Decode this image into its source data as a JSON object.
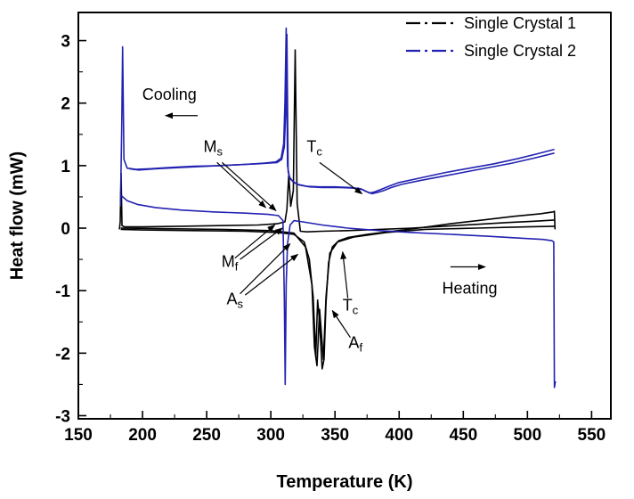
{
  "chart_data": {
    "type": "line",
    "title": "",
    "xlabel": "Temperature (K)",
    "ylabel": "Heat flow (mW)",
    "xlim": [
      150,
      565
    ],
    "ylim": [
      -3.05,
      3.45
    ],
    "x_ticks": [
      150,
      200,
      250,
      300,
      350,
      400,
      450,
      500,
      550
    ],
    "y_ticks": [
      -3,
      -2,
      -1,
      0,
      1,
      2,
      3
    ],
    "x_minor_step": 25,
    "y_minor_step": 0.5,
    "grid": false,
    "legend_position": "top-right",
    "colors": {
      "crystal1": "#000000",
      "crystal2": "#2222b2"
    },
    "legend": [
      {
        "label": "Single Crystal 1",
        "color": "#000000",
        "dash": "dash-dot"
      },
      {
        "label": "Single Crystal 2",
        "color": "#2222b2",
        "dash": "dash-dot"
      }
    ],
    "series": [
      {
        "name": "Single Crystal 1 heating",
        "color": "#000000",
        "points": [
          [
            183,
            -0.02
          ],
          [
            200,
            -0.03
          ],
          [
            240,
            -0.04
          ],
          [
            280,
            -0.05
          ],
          [
            305,
            -0.07
          ],
          [
            318,
            -0.1
          ],
          [
            326,
            -0.22
          ],
          [
            330,
            -0.5
          ],
          [
            333,
            -1.1
          ],
          [
            335,
            -2.05
          ],
          [
            336.5,
            -1.15
          ],
          [
            338,
            -1.5
          ],
          [
            340,
            -2.25
          ],
          [
            341.5,
            -2.1
          ],
          [
            343,
            -1.2
          ],
          [
            345,
            -0.55
          ],
          [
            348,
            -0.3
          ],
          [
            353,
            -0.2
          ],
          [
            360,
            -0.15
          ],
          [
            375,
            -0.1
          ],
          [
            395,
            -0.05
          ],
          [
            415,
            0.0
          ],
          [
            440,
            0.07
          ],
          [
            465,
            0.13
          ],
          [
            490,
            0.19
          ],
          [
            510,
            0.23
          ],
          [
            520,
            0.26
          ],
          [
            521,
            0.27
          ],
          [
            521.5,
            -0.02
          ]
        ]
      },
      {
        "name": "Single Crystal 1 heating cycle 2",
        "color": "#000000",
        "points": [
          [
            183,
            0.0
          ],
          [
            220,
            -0.01
          ],
          [
            260,
            -0.02
          ],
          [
            300,
            -0.04
          ],
          [
            318,
            -0.08
          ],
          [
            327,
            -0.3
          ],
          [
            332,
            -0.9
          ],
          [
            334,
            -1.9
          ],
          [
            336,
            -2.2
          ],
          [
            338,
            -1.3
          ],
          [
            341,
            -2.1
          ],
          [
            343,
            -1.1
          ],
          [
            346,
            -0.4
          ],
          [
            352,
            -0.22
          ],
          [
            365,
            -0.14
          ],
          [
            390,
            -0.07
          ],
          [
            420,
            -0.02
          ],
          [
            460,
            0.0
          ],
          [
            500,
            0.02
          ],
          [
            521,
            0.03
          ]
        ]
      },
      {
        "name": "Single Crystal 1 cooling",
        "color": "#000000",
        "points": [
          [
            521,
            0.13
          ],
          [
            505,
            0.11
          ],
          [
            485,
            0.09
          ],
          [
            460,
            0.06
          ],
          [
            435,
            0.03
          ],
          [
            410,
            0.0
          ],
          [
            385,
            -0.02
          ],
          [
            360,
            -0.04
          ],
          [
            340,
            -0.05
          ],
          [
            328,
            -0.06
          ],
          [
            323,
            -0.05
          ],
          [
            320.5,
            0.4
          ],
          [
            319,
            2.85
          ],
          [
            317.5,
            0.6
          ],
          [
            315.5,
            0.35
          ],
          [
            314,
            0.85
          ],
          [
            312.5,
            0.3
          ],
          [
            311,
            0.1
          ],
          [
            305,
            0.07
          ],
          [
            290,
            0.05
          ],
          [
            260,
            0.04
          ],
          [
            230,
            0.03
          ],
          [
            200,
            0.02
          ],
          [
            186,
            0.02
          ],
          [
            184,
            0.04
          ],
          [
            183.3,
            0.88
          ],
          [
            182.6,
            0.1
          ],
          [
            182,
            -0.02
          ]
        ]
      },
      {
        "name": "Single Crystal 2 heating",
        "color": "#2222b2",
        "points": [
          [
            183.5,
            0.52
          ],
          [
            188,
            0.44
          ],
          [
            196,
            0.38
          ],
          [
            210,
            0.33
          ],
          [
            230,
            0.29
          ],
          [
            255,
            0.26
          ],
          [
            280,
            0.24
          ],
          [
            298,
            0.22
          ],
          [
            306,
            0.2
          ],
          [
            309.5,
            0.12
          ],
          [
            310.5,
            -1.1
          ],
          [
            311.2,
            -2.5
          ],
          [
            312,
            -0.9
          ],
          [
            313,
            -0.25
          ],
          [
            315,
            0.05
          ],
          [
            318,
            0.12
          ],
          [
            325,
            0.1
          ],
          [
            340,
            0.05
          ],
          [
            360,
            0.0
          ],
          [
            385,
            -0.04
          ],
          [
            410,
            -0.07
          ],
          [
            440,
            -0.1
          ],
          [
            470,
            -0.13
          ],
          [
            495,
            -0.16
          ],
          [
            512,
            -0.18
          ],
          [
            519,
            -0.2
          ],
          [
            520.5,
            -0.22
          ],
          [
            521,
            -2.55
          ],
          [
            521.8,
            -2.45
          ]
        ]
      },
      {
        "name": "Single Crystal 2 cooling",
        "color": "#2222b2",
        "points": [
          [
            521,
            1.26
          ],
          [
            508,
            1.19
          ],
          [
            492,
            1.11
          ],
          [
            474,
            1.03
          ],
          [
            455,
            0.96
          ],
          [
            436,
            0.89
          ],
          [
            416,
            0.8
          ],
          [
            400,
            0.73
          ],
          [
            392,
            0.67
          ],
          [
            386,
            0.62
          ],
          [
            381,
            0.58
          ],
          [
            377,
            0.56
          ],
          [
            374,
            0.59
          ],
          [
            370,
            0.63
          ],
          [
            362,
            0.65
          ],
          [
            350,
            0.66
          ],
          [
            338,
            0.66
          ],
          [
            328,
            0.67
          ],
          [
            321,
            0.7
          ],
          [
            317,
            0.75
          ],
          [
            314.5,
            0.82
          ],
          [
            313,
            1.0
          ],
          [
            312,
            3.2
          ],
          [
            311,
            2.0
          ],
          [
            310,
            1.35
          ],
          [
            308,
            1.12
          ],
          [
            304,
            1.06
          ],
          [
            295,
            1.04
          ],
          [
            280,
            1.02
          ],
          [
            260,
            1.0
          ],
          [
            240,
            0.99
          ],
          [
            220,
            0.97
          ],
          [
            205,
            0.95
          ],
          [
            195,
            0.94
          ],
          [
            188,
            0.96
          ],
          [
            185.5,
            1.1
          ],
          [
            184.5,
            2.9
          ],
          [
            183.8,
            1.6
          ],
          [
            183.2,
            0.8
          ],
          [
            182.8,
            0.35
          ]
        ]
      },
      {
        "name": "Single Crystal 2 cooling cycle 2",
        "color": "#2222b2",
        "points": [
          [
            521,
            1.2
          ],
          [
            505,
            1.12
          ],
          [
            488,
            1.04
          ],
          [
            470,
            0.97
          ],
          [
            452,
            0.9
          ],
          [
            434,
            0.83
          ],
          [
            416,
            0.76
          ],
          [
            402,
            0.7
          ],
          [
            394,
            0.65
          ],
          [
            388,
            0.6
          ],
          [
            383,
            0.57
          ],
          [
            379,
            0.55
          ],
          [
            375,
            0.58
          ],
          [
            371,
            0.62
          ],
          [
            364,
            0.64
          ],
          [
            352,
            0.65
          ],
          [
            340,
            0.65
          ],
          [
            330,
            0.66
          ],
          [
            322,
            0.69
          ],
          [
            318,
            0.73
          ],
          [
            315,
            0.79
          ],
          [
            313.5,
            0.9
          ],
          [
            312.5,
            3.1
          ],
          [
            311.5,
            1.8
          ],
          [
            310.5,
            1.3
          ],
          [
            308.5,
            1.1
          ],
          [
            305,
            1.05
          ],
          [
            290,
            1.03
          ],
          [
            270,
            1.01
          ],
          [
            250,
            0.99
          ],
          [
            230,
            0.97
          ],
          [
            210,
            0.95
          ],
          [
            197,
            0.93
          ],
          [
            190,
            0.95
          ]
        ]
      }
    ],
    "annotations": [
      {
        "name": "cooling",
        "text": "Cooling",
        "sub": "",
        "x": 221,
        "y": 2.05,
        "arrows": [
          [
            243,
            1.8,
            218,
            1.8
          ]
        ]
      },
      {
        "name": "heating",
        "text": "Heating",
        "sub": "",
        "x": 455,
        "y": -1.05,
        "arrows": [
          [
            440,
            -0.62,
            467,
            -0.62
          ]
        ]
      },
      {
        "name": "Ms",
        "text": "M",
        "sub": "s",
        "x": 255,
        "y": 1.22,
        "arrows": [
          [
            258,
            1.05,
            296,
            0.33
          ],
          [
            262,
            1.05,
            304,
            0.28
          ]
        ]
      },
      {
        "name": "Tc-upper",
        "text": "T",
        "sub": "c",
        "x": 334,
        "y": 1.22,
        "arrows": [
          [
            338,
            1.05,
            371,
            0.55
          ]
        ]
      },
      {
        "name": "Mf",
        "text": "M",
        "sub": "f",
        "x": 268,
        "y": -0.62,
        "arrows": [
          [
            272,
            -0.48,
            303,
            0.05
          ],
          [
            276,
            -0.5,
            309,
            0.0
          ]
        ]
      },
      {
        "name": "As",
        "text": "A",
        "sub": "s",
        "x": 272,
        "y": -1.22,
        "arrows": [
          [
            276,
            -1.05,
            315,
            -0.25
          ],
          [
            280,
            -1.07,
            321,
            -0.42
          ]
        ]
      },
      {
        "name": "Tc-lower",
        "text": "T",
        "sub": "c",
        "x": 362,
        "y": -1.32,
        "arrows": [
          [
            360,
            -1.12,
            356,
            -0.38
          ]
        ]
      },
      {
        "name": "Af",
        "text": "A",
        "sub": "f",
        "x": 366,
        "y": -1.92,
        "arrows": [
          [
            362,
            -1.75,
            348,
            -1.32
          ]
        ]
      }
    ]
  }
}
